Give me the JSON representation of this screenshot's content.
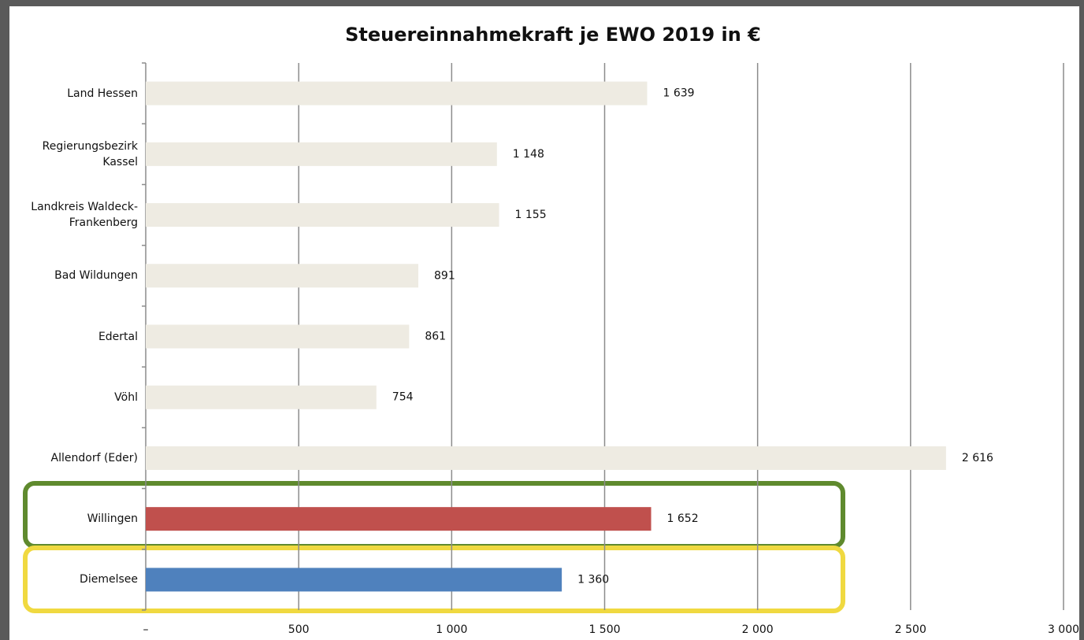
{
  "chart_data": {
    "type": "bar",
    "orientation": "horizontal",
    "title": "Steuereinnahmekraft je EWO 2019 in €",
    "categories": [
      "Land Hessen",
      "Regierungsbezirk Kassel",
      "Landkreis Waldeck-Frankenberg",
      "Bad Wildungen",
      "Edertal",
      "Vöhl",
      "Allendorf (Eder)",
      "Willingen",
      "Diemelsee"
    ],
    "values": [
      1639,
      1148,
      1155,
      891,
      861,
      754,
      2616,
      1652,
      1360
    ],
    "value_labels": [
      "1 639",
      "1 148",
      "1 155",
      "891",
      "861",
      "754",
      "2 616",
      "1 652",
      "1 360"
    ],
    "colors": [
      "#eeebe2",
      "#eeebe2",
      "#eeebe2",
      "#eeebe2",
      "#eeebe2",
      "#eeebe2",
      "#eeebe2",
      "#c0504d",
      "#4f81bd"
    ],
    "xlim": [
      0,
      3000
    ],
    "xticks": [
      {
        "value": 0,
        "label": "–"
      },
      500,
      {
        "value": 1000,
        "label": "1 000"
      },
      {
        "value": 1500,
        "label": "1 500"
      },
      {
        "value": 2000,
        "label": "2 000"
      },
      {
        "value": 2500,
        "label": "2 500"
      },
      {
        "value": 3000,
        "label": "3 000"
      }
    ],
    "grid": true
  }
}
